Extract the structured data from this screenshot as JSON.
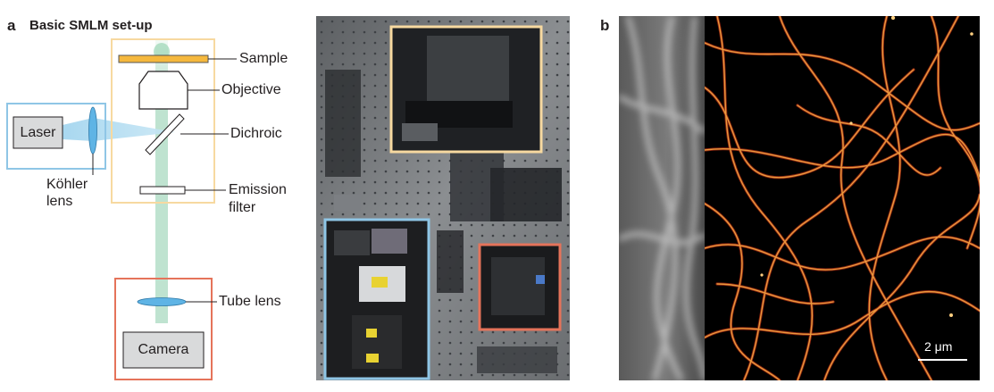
{
  "panel_a": {
    "letter": "a",
    "title": "Basic SMLM set-up",
    "labels": {
      "sample": "Sample",
      "objective": "Objective",
      "dichroic": "Dichroic",
      "laser": "Laser",
      "kohler_line1": "Köhler",
      "kohler_line2": "lens",
      "emission_line1": "Emission",
      "emission_line2": "filter",
      "tube_lens": "Tube lens",
      "camera": "Camera"
    },
    "colors": {
      "microscope_box": "#f7d9a0",
      "laser_box": "#8fc6e6",
      "camera_box": "#e5735a",
      "beam_green": "#bfe3d0",
      "beam_blue": "#9fd3ee",
      "sample_fill": "#f5b83d",
      "lens_fill": "#5fb4e5"
    }
  },
  "panel_b": {
    "letter": "b",
    "scale_bar": "2 μm",
    "colors": {
      "filament": "#f0a040",
      "background": "#000000"
    }
  }
}
